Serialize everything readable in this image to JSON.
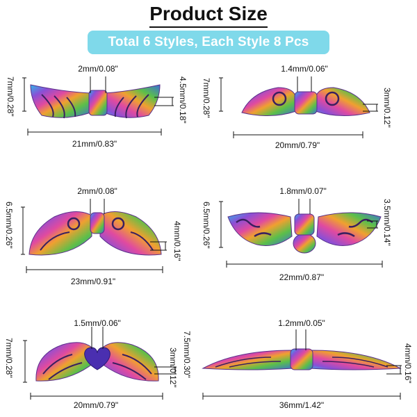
{
  "header": {
    "title": "Product Size",
    "banner": "Total 6 Styles, Each Style 8 Pcs"
  },
  "colors": {
    "banner_bg": "#7fd9ea",
    "rainbow": [
      "#2fb8e8",
      "#8a4fd6",
      "#e04aa0",
      "#f0a030",
      "#5bbf4a",
      "#3a6fd8"
    ]
  },
  "products": [
    {
      "style": "wing-style-1",
      "hole": "2mm/0.08\"",
      "height": "7mm/0.28\"",
      "thickness": "4.5mm/0.18\"",
      "length": "21mm/0.83\""
    },
    {
      "style": "wing-style-2",
      "hole": "1.4mm/0.06\"",
      "height": "7mm/0.28\"",
      "thickness": "3mm/0.12\"",
      "length": "20mm/0.79\""
    },
    {
      "style": "wing-style-3",
      "hole": "2mm/0.08\"",
      "height": "6.5mm/0.26\"",
      "thickness": "4mm/0.16\"",
      "length": "23mm/0.91\""
    },
    {
      "style": "wing-style-4",
      "hole": "1.8mm/0.07\"",
      "height": "6.5mm/0.26\"",
      "thickness": "3.5mm/0.14\"",
      "length": "22mm/0.87\""
    },
    {
      "style": "wing-style-5",
      "hole": "1.5mm/0.06\"",
      "height": "7mm/0.28\"",
      "thickness": "3mm/0.12\"",
      "length": "20mm/0.79\""
    },
    {
      "style": "wing-style-6",
      "hole": "1.2mm/0.05\"",
      "height": "7.5mm/0.30\"",
      "thickness": "4mm/0.16\"",
      "length": "36mm/1.42\""
    }
  ]
}
